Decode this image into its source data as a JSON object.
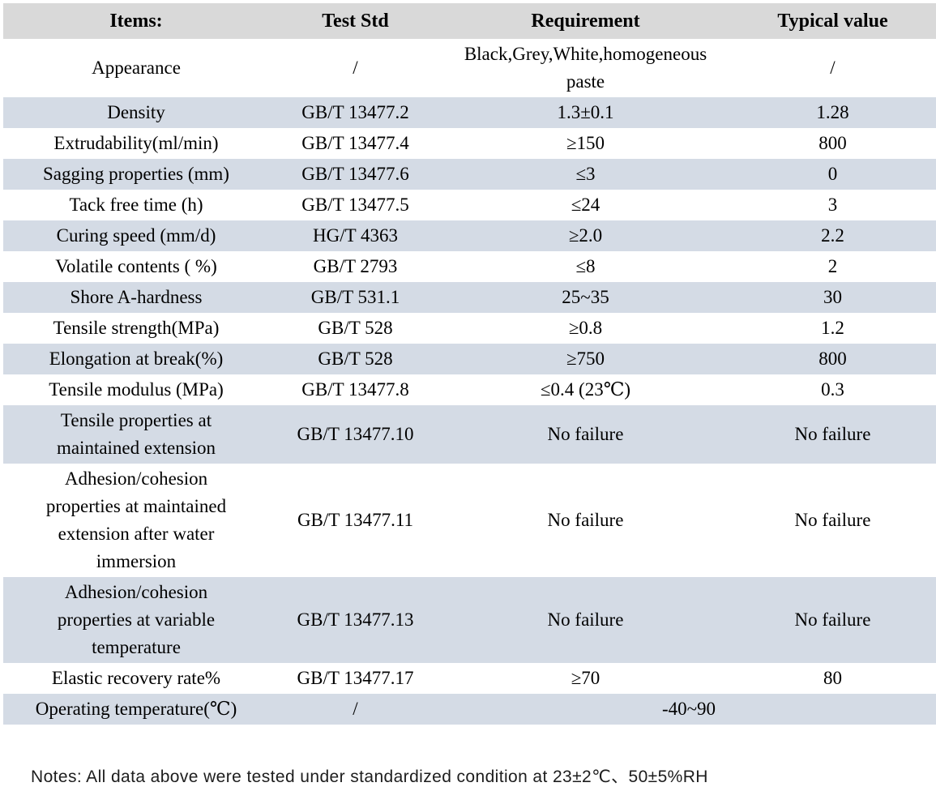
{
  "colors": {
    "header_bg": "#d9d9d9",
    "stripe_bg": "#d4dbe5",
    "text": "#000000"
  },
  "table": {
    "columns": [
      {
        "label": "Items:"
      },
      {
        "label": "Test Std"
      },
      {
        "label": "Requirement"
      },
      {
        "label": "Typical value"
      }
    ],
    "rows": [
      {
        "item": "Appearance",
        "std": "/",
        "requirement": "Black,Grey,White,homogeneous paste",
        "typical": "/"
      },
      {
        "item": "Density",
        "std": "GB/T 13477.2",
        "requirement": "1.3±0.1",
        "typical": "1.28"
      },
      {
        "item": "Extrudability(ml/min)",
        "std": "GB/T 13477.4",
        "requirement": "≥150",
        "typical": "800"
      },
      {
        "item": "Sagging properties (mm)",
        "std": "GB/T 13477.6",
        "requirement": "≤3",
        "typical": "0"
      },
      {
        "item": "Tack free time (h)",
        "std": "GB/T 13477.5",
        "requirement": "≤24",
        "typical": "3"
      },
      {
        "item": "Curing speed (mm/d)",
        "std": "HG/T 4363",
        "requirement": "≥2.0",
        "typical": "2.2"
      },
      {
        "item": "Volatile contents ( %)",
        "std": "GB/T 2793",
        "requirement": "≤8",
        "typical": "2"
      },
      {
        "item": "Shore A-hardness",
        "std": "GB/T 531.1",
        "requirement": "25~35",
        "typical": "30"
      },
      {
        "item": "Tensile strength(MPa)",
        "std": "GB/T 528",
        "requirement": "≥0.8",
        "typical": "1.2"
      },
      {
        "item": "Elongation at break(%)",
        "std": "GB/T 528",
        "requirement": "≥750",
        "typical": "800"
      },
      {
        "item": "Tensile modulus (MPa)",
        "std": "GB/T 13477.8",
        "requirement": "≤0.4 (23℃)",
        "typical": "0.3"
      },
      {
        "item": "Tensile properties at maintained extension",
        "std": "GB/T 13477.10",
        "requirement": "No failure",
        "typical": "No failure"
      },
      {
        "item": "Adhesion/cohesion properties at maintained extension after water immersion",
        "std": "GB/T 13477.11",
        "requirement": "No failure",
        "typical": "No failure"
      },
      {
        "item": "Adhesion/cohesion properties at variable temperature",
        "std": "GB/T 13477.13",
        "requirement": "No failure",
        "typical": "No failure"
      },
      {
        "item": "Elastic recovery rate%",
        "std": "GB/T 13477.17",
        "requirement": "≥70",
        "typical": "80"
      },
      {
        "item": "Operating temperature(℃)",
        "std": "/",
        "requirement": "-40~90",
        "typical": null,
        "merged": true
      }
    ]
  },
  "notes": "Notes: All data above were tested under standardized condition at 23±2℃、50±5%RH"
}
